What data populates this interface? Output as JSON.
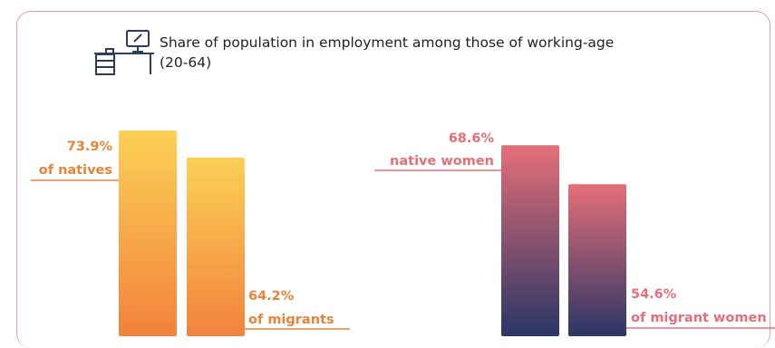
{
  "header": {
    "title_line1": "Share of population in employment among those of working-age",
    "title_line2": "(20-64)",
    "icon": "desk-computer-icon"
  },
  "colors": {
    "orange_label": "#e8843a",
    "orange_top": "#fbd056",
    "orange_bottom": "#f2823c",
    "pink_label": "#e2707a",
    "pink_top": "#e46f78",
    "pink_bottom": "#2b3566",
    "border": "#e3a2a2"
  },
  "chart_data": [
    {
      "type": "bar",
      "categories": [
        "natives",
        "migrants"
      ],
      "values": [
        73.9,
        64.2
      ],
      "labels": [
        {
          "value": "73.9%",
          "text": "of natives"
        },
        {
          "value": "64.2%",
          "text": "of migrants"
        }
      ],
      "unit": "%",
      "color_group": "orange"
    },
    {
      "type": "bar",
      "categories": [
        "native women",
        "migrant women"
      ],
      "values": [
        68.6,
        54.6
      ],
      "labels": [
        {
          "value": "68.6%",
          "text": "native women"
        },
        {
          "value": "54.6%",
          "text": "of migrant women"
        }
      ],
      "unit": "%",
      "color_group": "pink"
    }
  ]
}
